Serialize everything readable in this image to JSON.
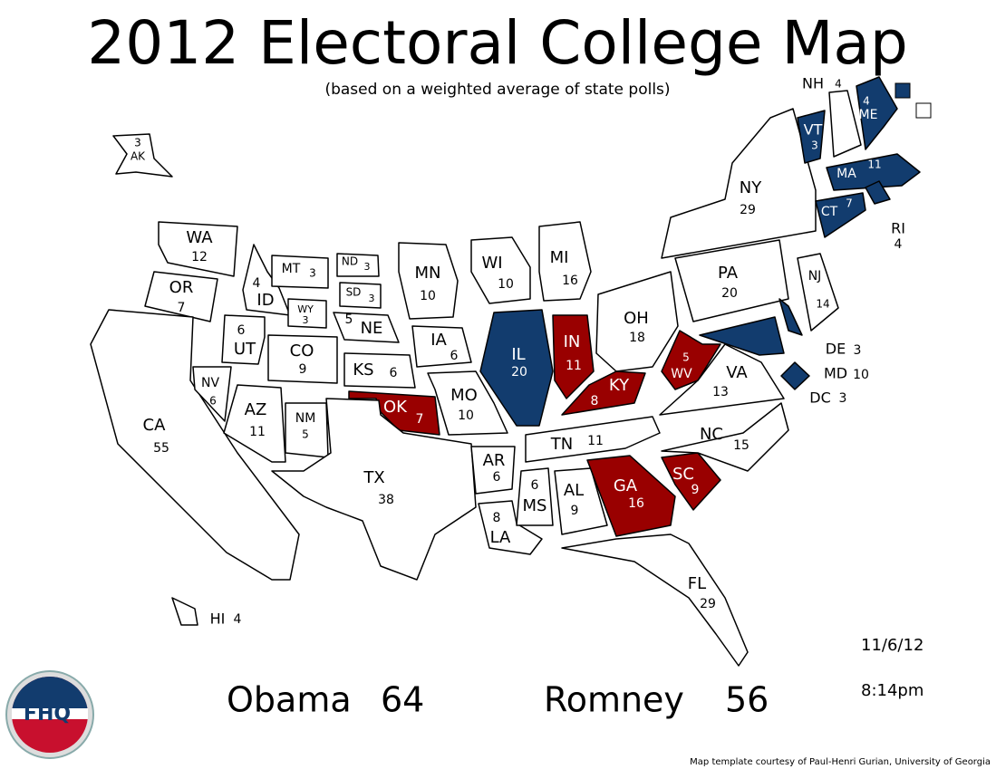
{
  "header": {
    "title": "2012 Electoral College Map",
    "subtitle": "(based on a weighted average of state polls)"
  },
  "colors": {
    "obama": "#123c6e",
    "romney": "#990000",
    "undecided": "#ffffff"
  },
  "states": [
    {
      "abbr": "AK",
      "votes": 3,
      "winner": "undecided"
    },
    {
      "abbr": "WA",
      "votes": 12,
      "winner": "undecided"
    },
    {
      "abbr": "OR",
      "votes": 7,
      "winner": "undecided"
    },
    {
      "abbr": "CA",
      "votes": 55,
      "winner": "undecided"
    },
    {
      "abbr": "NV",
      "votes": 6,
      "winner": "undecided"
    },
    {
      "abbr": "ID",
      "votes": 4,
      "winner": "undecided"
    },
    {
      "abbr": "MT",
      "votes": 3,
      "winner": "undecided"
    },
    {
      "abbr": "WY",
      "votes": 3,
      "winner": "undecided"
    },
    {
      "abbr": "UT",
      "votes": 6,
      "winner": "undecided"
    },
    {
      "abbr": "CO",
      "votes": 9,
      "winner": "undecided"
    },
    {
      "abbr": "AZ",
      "votes": 11,
      "winner": "undecided"
    },
    {
      "abbr": "NM",
      "votes": 5,
      "winner": "undecided"
    },
    {
      "abbr": "ND",
      "votes": 3,
      "winner": "undecided"
    },
    {
      "abbr": "SD",
      "votes": 3,
      "winner": "undecided"
    },
    {
      "abbr": "NE",
      "votes": 5,
      "winner": "undecided"
    },
    {
      "abbr": "KS",
      "votes": 6,
      "winner": "undecided"
    },
    {
      "abbr": "OK",
      "votes": 7,
      "winner": "romney"
    },
    {
      "abbr": "TX",
      "votes": 38,
      "winner": "undecided"
    },
    {
      "abbr": "MN",
      "votes": 10,
      "winner": "undecided"
    },
    {
      "abbr": "IA",
      "votes": 6,
      "winner": "undecided"
    },
    {
      "abbr": "MO",
      "votes": 10,
      "winner": "undecided"
    },
    {
      "abbr": "AR",
      "votes": 6,
      "winner": "undecided"
    },
    {
      "abbr": "LA",
      "votes": 8,
      "winner": "undecided"
    },
    {
      "abbr": "WI",
      "votes": 10,
      "winner": "undecided"
    },
    {
      "abbr": "IL",
      "votes": 20,
      "winner": "obama"
    },
    {
      "abbr": "MI",
      "votes": 16,
      "winner": "undecided"
    },
    {
      "abbr": "IN",
      "votes": 11,
      "winner": "romney"
    },
    {
      "abbr": "OH",
      "votes": 18,
      "winner": "undecided"
    },
    {
      "abbr": "KY",
      "votes": 8,
      "winner": "romney"
    },
    {
      "abbr": "TN",
      "votes": 11,
      "winner": "undecided"
    },
    {
      "abbr": "MS",
      "votes": 6,
      "winner": "undecided"
    },
    {
      "abbr": "AL",
      "votes": 9,
      "winner": "undecided"
    },
    {
      "abbr": "GA",
      "votes": 16,
      "winner": "romney"
    },
    {
      "abbr": "FL",
      "votes": 29,
      "winner": "undecided"
    },
    {
      "abbr": "SC",
      "votes": 9,
      "winner": "romney"
    },
    {
      "abbr": "NC",
      "votes": 15,
      "winner": "undecided"
    },
    {
      "abbr": "VA",
      "votes": 13,
      "winner": "undecided"
    },
    {
      "abbr": "WV",
      "votes": 5,
      "winner": "romney"
    },
    {
      "abbr": "PA",
      "votes": 20,
      "winner": "undecided"
    },
    {
      "abbr": "NY",
      "votes": 29,
      "winner": "undecided"
    },
    {
      "abbr": "NJ",
      "votes": 14,
      "winner": "undecided"
    },
    {
      "abbr": "DE",
      "votes": 3,
      "winner": "obama"
    },
    {
      "abbr": "MD",
      "votes": 10,
      "winner": "obama"
    },
    {
      "abbr": "DC",
      "votes": 3,
      "winner": "obama"
    },
    {
      "abbr": "VT",
      "votes": 3,
      "winner": "obama"
    },
    {
      "abbr": "NH",
      "votes": 4,
      "winner": "undecided"
    },
    {
      "abbr": "ME",
      "votes": 4,
      "winner": "obama"
    },
    {
      "abbr": "MA",
      "votes": 11,
      "winner": "obama"
    },
    {
      "abbr": "CT",
      "votes": 7,
      "winner": "obama"
    },
    {
      "abbr": "RI",
      "votes": 4,
      "winner": "obama"
    },
    {
      "abbr": "HI",
      "votes": 4,
      "winner": "undecided"
    }
  ],
  "totals": [
    {
      "name": "Obama",
      "votes": 64
    },
    {
      "name": "Romney",
      "votes": 56
    }
  ],
  "date": "11/6/12",
  "time": "8:14pm",
  "logo": "FHQ",
  "credit": "Map template courtesy of Paul-Henri Gurian, University of Georgia"
}
